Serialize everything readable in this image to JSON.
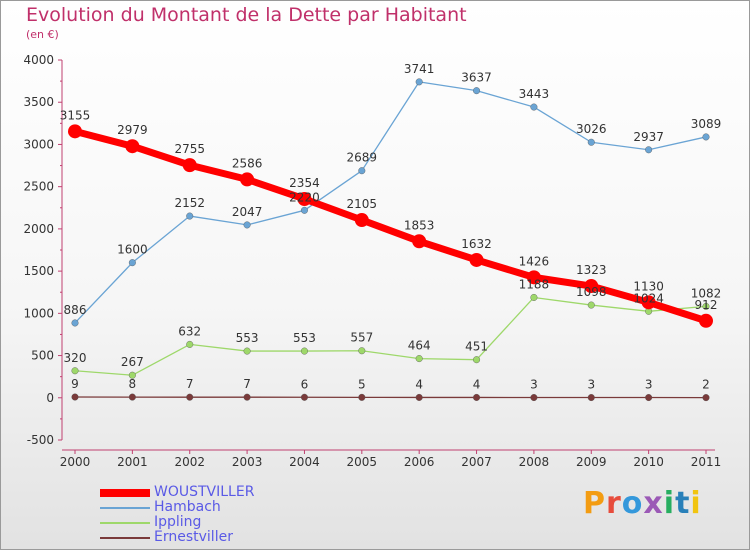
{
  "title": "Evolution du Montant de la Dette par Habitant",
  "subtitle": "(en €)",
  "logo": {
    "text": "Proxiti",
    "colors": [
      "#f39c12",
      "#e74c3c",
      "#3498db",
      "#9b59b6",
      "#27ae60",
      "#2980b9",
      "#f1c40f"
    ]
  },
  "chart_data": {
    "type": "line",
    "x": [
      "2000",
      "2001",
      "2002",
      "2003",
      "2004",
      "2005",
      "2006",
      "2007",
      "2008",
      "2009",
      "2010",
      "2011"
    ],
    "ylim": [
      -500,
      4000
    ],
    "yticks": [
      "-500",
      "0",
      "500",
      "1000",
      "1500",
      "2000",
      "2500",
      "3000",
      "3500",
      "4000"
    ],
    "grid": false,
    "legend_position": "bottom-left",
    "series": [
      {
        "name": "WOUSTVILLER",
        "color": "#ff0000",
        "values": [
          3155,
          2979,
          2755,
          2586,
          2354,
          2105,
          1853,
          1632,
          1426,
          1323,
          1130,
          912
        ],
        "labels": [
          "3155",
          "2979",
          "2755",
          "2586",
          "2354",
          "2105",
          "1853",
          "1632",
          "1426",
          "1323",
          "1130",
          "912"
        ]
      },
      {
        "name": "Hambach",
        "color": "#6aa4d4",
        "values": [
          886,
          1600,
          2152,
          2047,
          2220,
          2689,
          3741,
          3637,
          3443,
          3026,
          2937,
          3089
        ],
        "labels": [
          "886",
          "1600",
          "2152",
          "2047",
          "2220",
          "2689",
          "3741",
          "3637",
          "3443",
          "3026",
          "2937",
          "3089"
        ]
      },
      {
        "name": "Ippling",
        "color": "#9ed86a",
        "values": [
          320,
          267,
          632,
          553,
          553,
          557,
          464,
          451,
          1188,
          1098,
          1024,
          1082
        ],
        "labels": [
          "320",
          "267",
          "632",
          "553",
          "553",
          "557",
          "464",
          "451",
          "1188",
          "1098",
          "1024",
          "1082"
        ]
      },
      {
        "name": "Ernestviller",
        "color": "#7a3a3a",
        "values": [
          9,
          8,
          7,
          7,
          6,
          5,
          4,
          4,
          3,
          3,
          3,
          2
        ],
        "labels": [
          "9",
          "8",
          "7",
          "7",
          "6",
          "5",
          "4",
          "4",
          "3",
          "3",
          "3",
          "2"
        ]
      }
    ]
  }
}
